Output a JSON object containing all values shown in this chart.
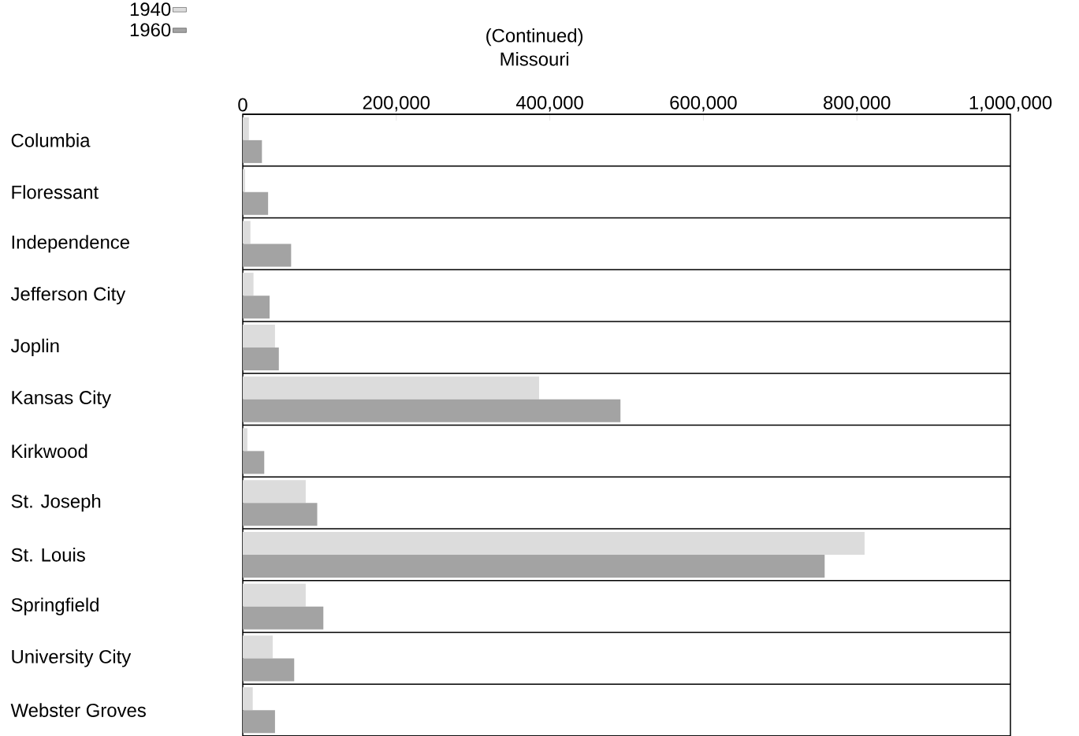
{
  "chart_data": {
    "type": "bar",
    "orientation": "horizontal",
    "title": "(Continued)",
    "subtitle": "Missouri",
    "categories": [
      "Columbia",
      "Floressant",
      "Independence",
      "Jefferson City",
      "Joplin",
      "Kansas City",
      "Kirkwood",
      "St. Joseph",
      "St. Louis",
      "Springfield",
      "University City",
      "Webster Groves"
    ],
    "series": [
      {
        "name": "1940",
        "color": "#dcdcdc",
        "values": [
          8000,
          3000,
          10000,
          14000,
          42000,
          386000,
          6000,
          82000,
          810000,
          82000,
          39000,
          13000
        ]
      },
      {
        "name": "1960",
        "color": "#a3a3a3",
        "values": [
          25000,
          33000,
          63000,
          35000,
          47000,
          492000,
          28000,
          97000,
          758000,
          105000,
          67000,
          42000
        ]
      }
    ],
    "xlim": [
      0,
      1000000
    ],
    "xticks": [
      0,
      {
        "value": 200000,
        "label": "200,000"
      },
      {
        "value": 400000,
        "label": "400,000"
      },
      {
        "value": 600000,
        "label": "600,000"
      },
      {
        "value": 800000,
        "label": "800,000"
      },
      {
        "value": 1000000,
        "label": "1,000,000"
      }
    ],
    "legend": "top left"
  }
}
